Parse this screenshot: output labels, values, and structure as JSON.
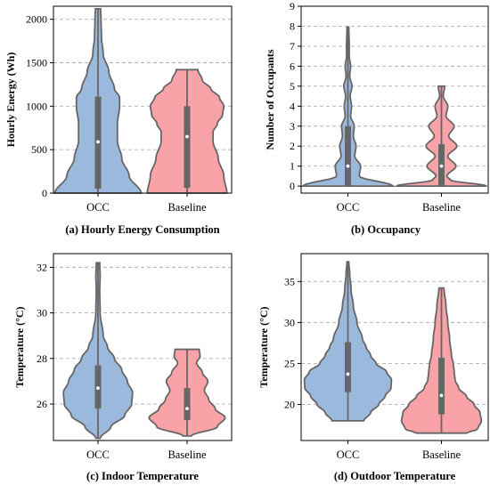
{
  "colors": {
    "occ": "#9ab9dc",
    "baseline": "#f9a3a8",
    "outline": "#666666"
  },
  "chart_data": [
    {
      "type": "violin",
      "caption": "(a) Hourly Energy Consumption",
      "ylabel": "Hourly Energy (Wh)",
      "categories": [
        "OCC",
        "Baseline"
      ],
      "ylim": [
        0,
        2150
      ],
      "yticks": [
        0,
        500,
        1000,
        1500,
        2000
      ],
      "grid": true,
      "series": [
        {
          "name": "OCC",
          "min": 0,
          "max": 2120,
          "q1": 50,
          "median": 590,
          "q3": 1110,
          "density": [
            [
              0,
              1.0
            ],
            [
              200,
              0.72
            ],
            [
              400,
              0.55
            ],
            [
              600,
              0.45
            ],
            [
              800,
              0.45
            ],
            [
              1000,
              0.5
            ],
            [
              1100,
              0.5
            ],
            [
              1200,
              0.38
            ],
            [
              1400,
              0.25
            ],
            [
              1600,
              0.12
            ],
            [
              1800,
              0.08
            ],
            [
              2000,
              0.07
            ],
            [
              2120,
              0.06
            ]
          ]
        },
        {
          "name": "Baseline",
          "min": 0,
          "max": 1420,
          "q1": 60,
          "median": 650,
          "q3": 1000,
          "density": [
            [
              0,
              0.92
            ],
            [
              200,
              0.85
            ],
            [
              400,
              0.72
            ],
            [
              600,
              0.6
            ],
            [
              700,
              0.6
            ],
            [
              800,
              0.7
            ],
            [
              900,
              0.82
            ],
            [
              1000,
              0.85
            ],
            [
              1100,
              0.75
            ],
            [
              1200,
              0.55
            ],
            [
              1300,
              0.35
            ],
            [
              1420,
              0.25
            ]
          ]
        }
      ]
    },
    {
      "type": "violin",
      "caption": "(b) Occupancy",
      "ylabel": "Number of Occupants",
      "categories": [
        "OCC",
        "Baseline"
      ],
      "ylim": [
        -0.35,
        9
      ],
      "yticks": [
        0,
        1,
        2,
        3,
        4,
        5,
        6,
        7,
        8,
        9
      ],
      "grid": true,
      "series": [
        {
          "name": "OCC",
          "min": 0,
          "max": 7.95,
          "q1": 0,
          "median": 1,
          "q3": 3,
          "density": [
            [
              0,
              1.0
            ],
            [
              0.5,
              0.25
            ],
            [
              1,
              0.28
            ],
            [
              1.5,
              0.15
            ],
            [
              2,
              0.18
            ],
            [
              2.5,
              0.12
            ],
            [
              3,
              0.14
            ],
            [
              3.5,
              0.06
            ],
            [
              4,
              0.08
            ],
            [
              4.5,
              0.05
            ],
            [
              5,
              0.09
            ],
            [
              5.5,
              0.04
            ],
            [
              6,
              0.06
            ],
            [
              6.5,
              0.03
            ],
            [
              7,
              0.03
            ],
            [
              7.95,
              0.02
            ]
          ]
        },
        {
          "name": "Baseline",
          "min": 0,
          "max": 5,
          "q1": 0,
          "median": 1,
          "q3": 2.1,
          "density": [
            [
              0,
              1.0
            ],
            [
              0.3,
              0.2
            ],
            [
              0.5,
              0.12
            ],
            [
              1,
              0.32
            ],
            [
              1.5,
              0.14
            ],
            [
              2,
              0.34
            ],
            [
              2.5,
              0.16
            ],
            [
              3,
              0.28
            ],
            [
              3.5,
              0.1
            ],
            [
              4,
              0.14
            ],
            [
              4.5,
              0.04
            ],
            [
              5,
              0.07
            ]
          ]
        }
      ]
    },
    {
      "type": "violin",
      "caption": "(c) Indoor Temperature",
      "ylabel": "Temperature (°C)",
      "categories": [
        "OCC",
        "Baseline"
      ],
      "ylim": [
        24.4,
        32.6
      ],
      "yticks": [
        26,
        28,
        30,
        32
      ],
      "grid": true,
      "series": [
        {
          "name": "OCC",
          "min": 24.5,
          "max": 32.2,
          "q1": 25.8,
          "median": 26.7,
          "q3": 27.7,
          "density": [
            [
              24.5,
              0.05
            ],
            [
              25,
              0.3
            ],
            [
              25.5,
              0.62
            ],
            [
              26,
              0.78
            ],
            [
              26.5,
              0.8
            ],
            [
              27,
              0.68
            ],
            [
              27.5,
              0.55
            ],
            [
              28,
              0.38
            ],
            [
              28.5,
              0.22
            ],
            [
              29,
              0.12
            ],
            [
              30,
              0.05
            ],
            [
              31,
              0.04
            ],
            [
              31.6,
              0.05
            ],
            [
              32.2,
              0.04
            ]
          ]
        },
        {
          "name": "Baseline",
          "min": 24.6,
          "max": 28.4,
          "q1": 25.3,
          "median": 25.8,
          "q3": 26.7,
          "density": [
            [
              24.6,
              0.1
            ],
            [
              25,
              0.7
            ],
            [
              25.4,
              0.88
            ],
            [
              25.8,
              0.65
            ],
            [
              26.2,
              0.5
            ],
            [
              26.6,
              0.4
            ],
            [
              27,
              0.48
            ],
            [
              27.4,
              0.35
            ],
            [
              27.8,
              0.22
            ],
            [
              28.1,
              0.3
            ],
            [
              28.4,
              0.28
            ]
          ]
        }
      ]
    },
    {
      "type": "violin",
      "caption": "(d) Outdoor Temperature",
      "ylabel": "Temperature (°C)",
      "categories": [
        "OCC",
        "Baseline"
      ],
      "ylim": [
        15.6,
        38.4
      ],
      "yticks": [
        20,
        25,
        30,
        35
      ],
      "grid": true,
      "series": [
        {
          "name": "OCC",
          "min": 18,
          "max": 37.4,
          "q1": 21.5,
          "median": 23.7,
          "q3": 27.6,
          "density": [
            [
              18,
              0.35
            ],
            [
              19,
              0.5
            ],
            [
              20,
              0.68
            ],
            [
              21,
              0.82
            ],
            [
              22,
              0.95
            ],
            [
              23,
              0.96
            ],
            [
              24,
              0.85
            ],
            [
              25,
              0.62
            ],
            [
              26,
              0.5
            ],
            [
              27,
              0.4
            ],
            [
              28,
              0.32
            ],
            [
              30,
              0.2
            ],
            [
              32,
              0.12
            ],
            [
              34,
              0.07
            ],
            [
              36,
              0.04
            ],
            [
              37.4,
              0.02
            ]
          ]
        },
        {
          "name": "Baseline",
          "min": 16.5,
          "max": 34.2,
          "q1": 18.8,
          "median": 21.1,
          "q3": 25.7,
          "density": [
            [
              16.5,
              0.55
            ],
            [
              17,
              0.8
            ],
            [
              18,
              0.88
            ],
            [
              19,
              0.85
            ],
            [
              20,
              0.72
            ],
            [
              21,
              0.55
            ],
            [
              22,
              0.38
            ],
            [
              23,
              0.3
            ],
            [
              24,
              0.28
            ],
            [
              25,
              0.26
            ],
            [
              26,
              0.22
            ],
            [
              28,
              0.18
            ],
            [
              30,
              0.14
            ],
            [
              32,
              0.1
            ],
            [
              34,
              0.06
            ],
            [
              34.2,
              0.05
            ]
          ]
        }
      ]
    }
  ]
}
